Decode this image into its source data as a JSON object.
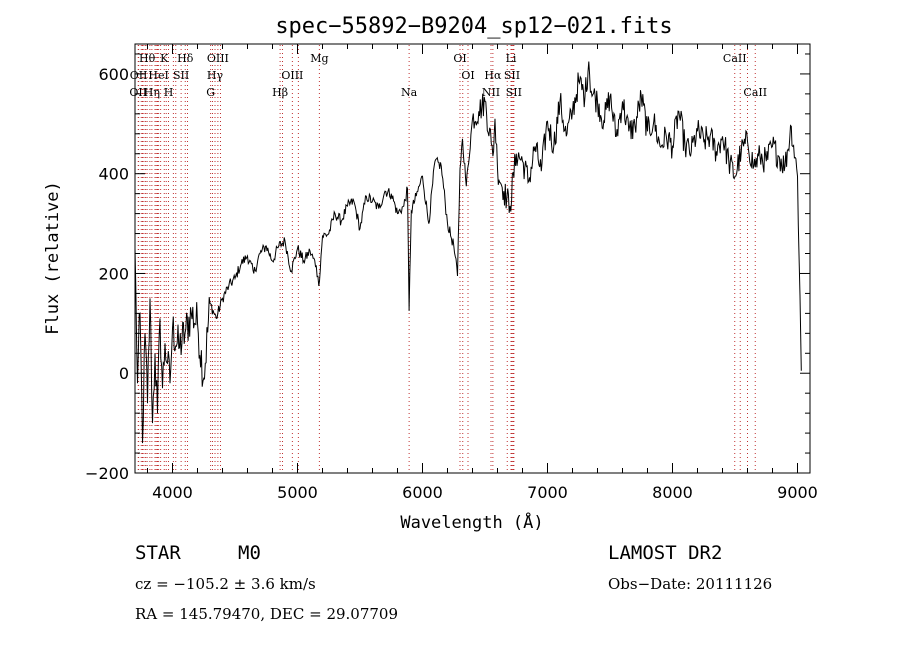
{
  "chart_data": {
    "type": "line",
    "title": "spec−55892−B9204_sp12−021.fits",
    "xlabel": "Wavelength (Å)",
    "ylabel": "Flux (relative)",
    "xlim": [
      3700,
      9100
    ],
    "ylim": [
      -200,
      660
    ],
    "xticks": [
      4000,
      5000,
      6000,
      7000,
      8000,
      9000
    ],
    "yticks": [
      -200,
      0,
      200,
      400,
      600
    ],
    "xtick_labels": [
      "4000",
      "5000",
      "6000",
      "7000",
      "8000",
      "9000"
    ],
    "ytick_labels": [
      "−200",
      "0",
      "200",
      "400",
      "600"
    ],
    "grid": false,
    "line_color": "#000000",
    "marker_color": "#c03030",
    "spectrum": {
      "x": [
        3700,
        3720,
        3740,
        3760,
        3780,
        3800,
        3820,
        3840,
        3860,
        3880,
        3900,
        3920,
        3940,
        3960,
        3980,
        4000,
        4050,
        4100,
        4150,
        4200,
        4250,
        4300,
        4350,
        4400,
        4450,
        4500,
        4550,
        4600,
        4650,
        4700,
        4750,
        4800,
        4850,
        4900,
        4950,
        5000,
        5050,
        5100,
        5150,
        5170,
        5200,
        5250,
        5300,
        5350,
        5400,
        5450,
        5500,
        5550,
        5600,
        5650,
        5700,
        5750,
        5800,
        5850,
        5880,
        5893,
        5910,
        5950,
        6000,
        6050,
        6100,
        6150,
        6200,
        6250,
        6280,
        6300,
        6320,
        6350,
        6400,
        6450,
        6500,
        6550,
        6563,
        6580,
        6600,
        6650,
        6700,
        6750,
        6800,
        6850,
        6900,
        6950,
        7000,
        7050,
        7100,
        7150,
        7200,
        7250,
        7300,
        7330,
        7350,
        7400,
        7450,
        7500,
        7550,
        7600,
        7650,
        7700,
        7750,
        7800,
        7850,
        7900,
        7950,
        8000,
        8050,
        8100,
        8150,
        8200,
        8250,
        8300,
        8350,
        8400,
        8450,
        8500,
        8550,
        8600,
        8650,
        8700,
        8750,
        8800,
        8850,
        8900,
        8950,
        9000,
        9020,
        9030
      ],
      "y": [
        250,
        -20,
        120,
        -140,
        80,
        -60,
        150,
        -100,
        40,
        -80,
        110,
        -30,
        60,
        20,
        -20,
        90,
        50,
        80,
        120,
        100,
        -10,
        140,
        110,
        150,
        175,
        190,
        220,
        235,
        200,
        240,
        255,
        225,
        255,
        265,
        205,
        250,
        225,
        245,
        215,
        175,
        275,
        280,
        320,
        305,
        335,
        345,
        290,
        355,
        345,
        330,
        365,
        360,
        320,
        335,
        370,
        125,
        325,
        355,
        395,
        300,
        425,
        415,
        300,
        255,
        195,
        410,
        470,
        375,
        510,
        525,
        545,
        460,
        435,
        510,
        410,
        365,
        335,
        440,
        425,
        385,
        455,
        405,
        505,
        455,
        545,
        475,
        525,
        585,
        555,
        625,
        565,
        545,
        505,
        555,
        475,
        545,
        485,
        495,
        555,
        485,
        505,
        455,
        475,
        455,
        525,
        455,
        445,
        485,
        465,
        475,
        445,
        475,
        425,
        395,
        445,
        465,
        415,
        435,
        425,
        455,
        435,
        415,
        495,
        395,
        155,
        5
      ]
    },
    "lines": [
      {
        "name": "Hθ",
        "x": 3797,
        "row": 1
      },
      {
        "name": "K",
        "x": 3934,
        "row": 1
      },
      {
        "name": "Hδ",
        "x": 4102,
        "row": 1
      },
      {
        "name": "OIII",
        "x": 4363,
        "row": 1
      },
      {
        "name": "Mg",
        "x": 5175,
        "row": 1
      },
      {
        "name": "OI",
        "x": 6300,
        "row": 1
      },
      {
        "name": "Li",
        "x": 6708,
        "row": 1
      },
      {
        "name": "CaII",
        "x": 8498,
        "row": 1
      },
      {
        "name": "OII",
        "x": 3729,
        "row": 2
      },
      {
        "name": "HeI",
        "x": 3889,
        "row": 2
      },
      {
        "name": "SII",
        "x": 4069,
        "row": 2
      },
      {
        "name": "Hγ",
        "x": 4340,
        "row": 2
      },
      {
        "name": "OIII",
        "x": 4959,
        "row": 2
      },
      {
        "name": "OI",
        "x": 6364,
        "row": 2
      },
      {
        "name": "Hα",
        "x": 6563,
        "row": 2
      },
      {
        "name": "SII",
        "x": 6716,
        "row": 2
      },
      {
        "name": "OII",
        "x": 3726,
        "row": 3
      },
      {
        "name": "Hη",
        "x": 3835,
        "row": 3
      },
      {
        "name": "H",
        "x": 3968,
        "row": 3
      },
      {
        "name": "G",
        "x": 4305,
        "row": 3
      },
      {
        "name": "Hβ",
        "x": 4861,
        "row": 3
      },
      {
        "name": "Na",
        "x": 5893,
        "row": 3
      },
      {
        "name": "NII",
        "x": 6548,
        "row": 3
      },
      {
        "name": "SII",
        "x": 6731,
        "row": 3
      },
      {
        "name": "CaII",
        "x": 8662,
        "row": 3
      }
    ],
    "extra_marker_x": [
      3750,
      3760,
      3771,
      3785,
      3819,
      3860,
      3870,
      3880,
      3905,
      3950,
      4007,
      4026,
      4120,
      4320,
      4384,
      4880,
      5007,
      6322,
      6678,
      6725,
      8542,
      8600
    ]
  },
  "footer": {
    "object_class": "STAR",
    "subclass": "M0",
    "survey": "LAMOST DR2",
    "cz": "cz = −105.2 ± 3.6 km/s",
    "obs_date": "Obs−Date: 20111126",
    "radec": "RA = 145.79470, DEC =  29.07709"
  }
}
